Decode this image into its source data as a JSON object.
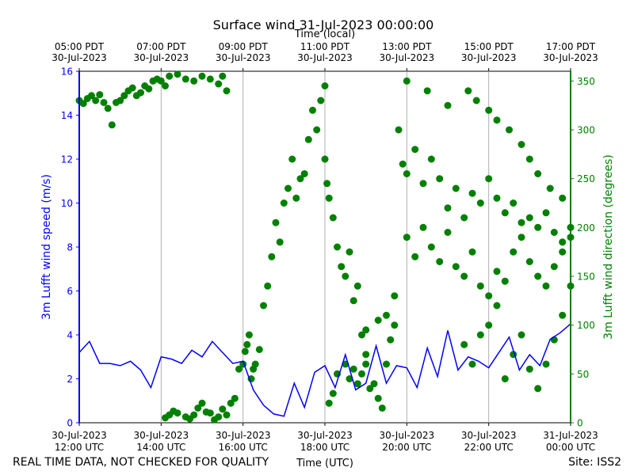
{
  "chart_data": {
    "type": "line+scatter",
    "title": "Surface wind 31-Jul-2023 00:00:00",
    "top_axis_title": "Time (local)",
    "xlabel": "Time (UTC)",
    "ylabel_left": "3m Lufft wind speed (m/s)",
    "ylabel_right": "3m Lufft wind direction (degrees)",
    "colors": {
      "speed": "#0000ff",
      "direction": "#008000",
      "grid": "#b0b0b0"
    },
    "x_hours_range": [
      12,
      24
    ],
    "ylim_left": [
      0,
      16
    ],
    "ylim_right": [
      0,
      360
    ],
    "left_ticks": [
      "0",
      "2",
      "4",
      "6",
      "8",
      "10",
      "12",
      "14",
      "16"
    ],
    "right_ticks": [
      "0",
      "50",
      "100",
      "150",
      "200",
      "250",
      "300",
      "350"
    ],
    "bottom_ticks": [
      {
        "line1": "30-Jul-2023",
        "line2": "12:00 UTC"
      },
      {
        "line1": "30-Jul-2023",
        "line2": "14:00 UTC"
      },
      {
        "line1": "30-Jul-2023",
        "line2": "16:00 UTC"
      },
      {
        "line1": "30-Jul-2023",
        "line2": "18:00 UTC"
      },
      {
        "line1": "30-Jul-2023",
        "line2": "20:00 UTC"
      },
      {
        "line1": "30-Jul-2023",
        "line2": "22:00 UTC"
      },
      {
        "line1": "31-Jul-2023",
        "line2": "00:00 UTC"
      }
    ],
    "top_ticks": [
      {
        "line1": "05:00 PDT",
        "line2": "30-Jul-2023"
      },
      {
        "line1": "07:00 PDT",
        "line2": "30-Jul-2023"
      },
      {
        "line1": "09:00 PDT",
        "line2": "30-Jul-2023"
      },
      {
        "line1": "11:00 PDT",
        "line2": "30-Jul-2023"
      },
      {
        "line1": "13:00 PDT",
        "line2": "30-Jul-2023"
      },
      {
        "line1": "15:00 PDT",
        "line2": "30-Jul-2023"
      },
      {
        "line1": "17:00 PDT",
        "line2": "30-Jul-2023"
      }
    ],
    "speed_hours": [
      12.0,
      12.25,
      12.5,
      12.75,
      13.0,
      13.25,
      13.5,
      13.75,
      14.0,
      14.25,
      14.5,
      14.75,
      15.0,
      15.25,
      15.5,
      15.75,
      16.0,
      16.25,
      16.5,
      16.75,
      17.0,
      17.25,
      17.5,
      17.75,
      18.0,
      18.25,
      18.5,
      18.75,
      19.0,
      19.25,
      19.5,
      19.75,
      20.0,
      20.25,
      20.5,
      20.75,
      21.0,
      21.25,
      21.5,
      21.75,
      22.0,
      22.25,
      22.5,
      22.75,
      23.0,
      23.25,
      23.5,
      23.75,
      24.0
    ],
    "speed_values": [
      3.2,
      3.7,
      2.7,
      2.7,
      2.6,
      2.8,
      2.4,
      1.6,
      3.0,
      2.9,
      2.7,
      3.3,
      3.0,
      3.7,
      3.2,
      2.7,
      2.8,
      1.5,
      0.8,
      0.4,
      0.3,
      1.8,
      0.7,
      2.3,
      2.6,
      1.6,
      3.1,
      1.5,
      1.8,
      3.5,
      1.8,
      2.6,
      2.5,
      1.6,
      3.4,
      2.1,
      4.2,
      2.4,
      3.0,
      2.8,
      2.5,
      3.2,
      3.9,
      2.4,
      3.1,
      2.6,
      3.8,
      4.1,
      4.5
    ],
    "direction_points": [
      [
        12.0,
        330
      ],
      [
        12.1,
        327
      ],
      [
        12.2,
        332
      ],
      [
        12.3,
        335
      ],
      [
        12.4,
        330
      ],
      [
        12.5,
        336
      ],
      [
        12.6,
        328
      ],
      [
        12.7,
        322
      ],
      [
        12.8,
        305
      ],
      [
        12.9,
        328
      ],
      [
        13.0,
        330
      ],
      [
        13.1,
        335
      ],
      [
        13.2,
        340
      ],
      [
        13.3,
        343
      ],
      [
        13.4,
        335
      ],
      [
        13.5,
        338
      ],
      [
        13.6,
        345
      ],
      [
        13.7,
        342
      ],
      [
        13.8,
        350
      ],
      [
        13.9,
        352
      ],
      [
        14.0,
        350
      ],
      [
        14.1,
        345
      ],
      [
        14.2,
        355
      ],
      [
        14.4,
        357
      ],
      [
        14.6,
        352
      ],
      [
        14.8,
        350
      ],
      [
        15.0,
        355
      ],
      [
        15.2,
        352
      ],
      [
        15.4,
        347
      ],
      [
        15.5,
        355
      ],
      [
        15.6,
        340
      ],
      [
        14.1,
        5
      ],
      [
        14.2,
        8
      ],
      [
        14.3,
        12
      ],
      [
        14.4,
        10
      ],
      [
        14.6,
        6
      ],
      [
        14.7,
        4
      ],
      [
        14.8,
        8
      ],
      [
        14.9,
        15
      ],
      [
        15.0,
        20
      ],
      [
        15.1,
        11
      ],
      [
        15.2,
        10
      ],
      [
        15.3,
        3
      ],
      [
        15.4,
        6
      ],
      [
        15.5,
        14
      ],
      [
        15.6,
        8
      ],
      [
        15.7,
        20
      ],
      [
        15.8,
        25
      ],
      [
        15.9,
        55
      ],
      [
        16.0,
        60
      ],
      [
        16.05,
        73
      ],
      [
        16.1,
        80
      ],
      [
        16.15,
        90
      ],
      [
        16.2,
        45
      ],
      [
        16.25,
        55
      ],
      [
        16.3,
        60
      ],
      [
        16.4,
        75
      ],
      [
        16.5,
        120
      ],
      [
        16.6,
        140
      ],
      [
        16.7,
        170
      ],
      [
        16.8,
        205
      ],
      [
        16.9,
        185
      ],
      [
        17.0,
        225
      ],
      [
        17.1,
        240
      ],
      [
        17.2,
        270
      ],
      [
        17.3,
        230
      ],
      [
        17.4,
        250
      ],
      [
        17.5,
        255
      ],
      [
        17.6,
        290
      ],
      [
        17.7,
        320
      ],
      [
        17.8,
        300
      ],
      [
        17.9,
        330
      ],
      [
        18.0,
        345
      ],
      [
        18.0,
        270
      ],
      [
        18.05,
        245
      ],
      [
        18.1,
        230
      ],
      [
        18.2,
        210
      ],
      [
        18.3,
        180
      ],
      [
        18.4,
        160
      ],
      [
        18.5,
        150
      ],
      [
        18.6,
        175
      ],
      [
        18.7,
        125
      ],
      [
        18.8,
        140
      ],
      [
        18.9,
        90
      ],
      [
        19.0,
        70
      ],
      [
        19.0,
        60
      ],
      [
        19.1,
        35
      ],
      [
        19.2,
        40
      ],
      [
        19.3,
        25
      ],
      [
        19.4,
        15
      ],
      [
        19.5,
        60
      ],
      [
        19.6,
        85
      ],
      [
        19.7,
        100
      ],
      [
        18.1,
        20
      ],
      [
        18.2,
        30
      ],
      [
        18.3,
        50
      ],
      [
        18.5,
        60
      ],
      [
        18.6,
        45
      ],
      [
        18.7,
        55
      ],
      [
        18.8,
        40
      ],
      [
        18.9,
        50
      ],
      [
        19.0,
        95
      ],
      [
        19.3,
        105
      ],
      [
        19.5,
        110
      ],
      [
        19.7,
        130
      ],
      [
        19.8,
        300
      ],
      [
        19.9,
        265
      ],
      [
        20.0,
        255
      ],
      [
        20.2,
        280
      ],
      [
        20.4,
        245
      ],
      [
        20.6,
        270
      ],
      [
        20.8,
        250
      ],
      [
        21.0,
        220
      ],
      [
        21.2,
        240
      ],
      [
        21.4,
        210
      ],
      [
        21.6,
        235
      ],
      [
        21.8,
        225
      ],
      [
        22.0,
        250
      ],
      [
        22.2,
        230
      ],
      [
        22.4,
        215
      ],
      [
        22.6,
        225
      ],
      [
        22.8,
        205
      ],
      [
        23.0,
        210
      ],
      [
        23.2,
        200
      ],
      [
        23.4,
        215
      ],
      [
        23.6,
        195
      ],
      [
        23.8,
        185
      ],
      [
        24.0,
        200
      ],
      [
        20.0,
        190
      ],
      [
        20.2,
        170
      ],
      [
        20.4,
        200
      ],
      [
        20.6,
        180
      ],
      [
        20.8,
        165
      ],
      [
        21.0,
        195
      ],
      [
        21.2,
        160
      ],
      [
        21.4,
        150
      ],
      [
        21.6,
        175
      ],
      [
        21.8,
        140
      ],
      [
        22.0,
        130
      ],
      [
        22.2,
        155
      ],
      [
        22.4,
        145
      ],
      [
        22.6,
        175
      ],
      [
        22.8,
        190
      ],
      [
        23.0,
        165
      ],
      [
        23.2,
        150
      ],
      [
        23.4,
        140
      ],
      [
        23.6,
        160
      ],
      [
        23.8,
        175
      ],
      [
        24.0,
        190
      ],
      [
        21.4,
        80
      ],
      [
        21.6,
        60
      ],
      [
        21.8,
        90
      ],
      [
        22.0,
        100
      ],
      [
        22.2,
        120
      ],
      [
        22.4,
        45
      ],
      [
        22.6,
        70
      ],
      [
        22.8,
        90
      ],
      [
        23.0,
        55
      ],
      [
        23.2,
        35
      ],
      [
        23.4,
        60
      ],
      [
        23.6,
        85
      ],
      [
        23.8,
        110
      ],
      [
        24.0,
        140
      ],
      [
        20.0,
        350
      ],
      [
        20.5,
        340
      ],
      [
        21.0,
        325
      ],
      [
        21.5,
        340
      ],
      [
        21.7,
        330
      ],
      [
        22.0,
        320
      ],
      [
        22.2,
        310
      ],
      [
        22.5,
        300
      ],
      [
        22.8,
        285
      ],
      [
        23.0,
        270
      ],
      [
        23.2,
        255
      ],
      [
        23.5,
        240
      ],
      [
        23.8,
        230
      ]
    ]
  },
  "footer": {
    "left": "REAL TIME DATA, NOT CHECKED FOR QUALITY",
    "right": "Site: ISS2"
  }
}
